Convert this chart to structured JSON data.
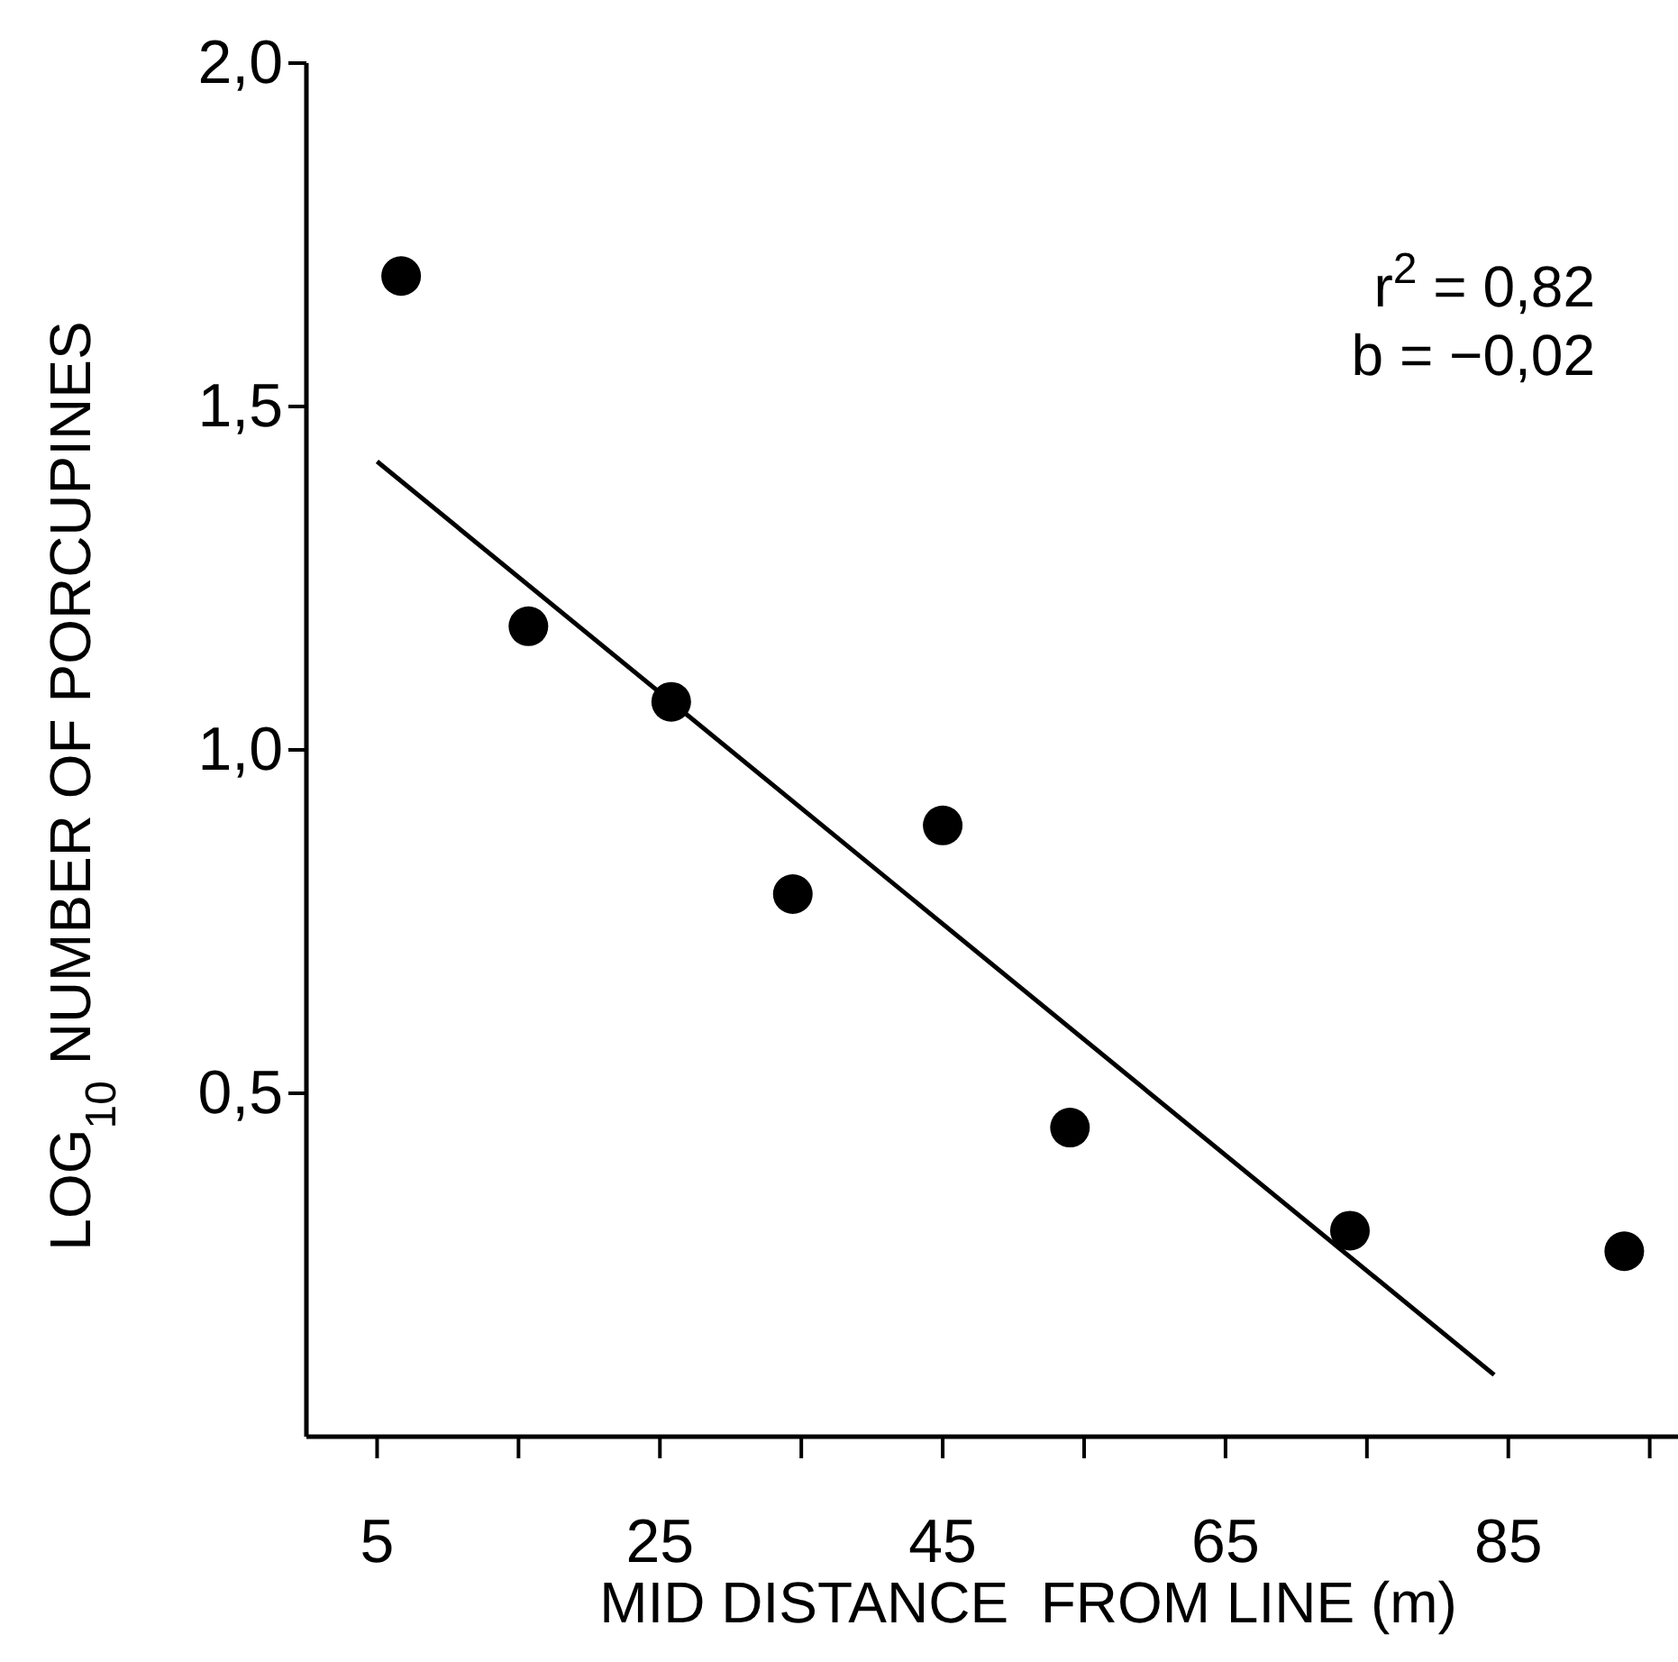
{
  "chart_data": {
    "type": "scatter",
    "xlabel": "MID DISTANCE  FROM LINE (m)",
    "ylabel": "LOG$_{10}$ NUMBER OF PORCUPINES",
    "annotations": [
      "r$^{2}$ = 0,82",
      "b = −0,02"
    ],
    "xlim": [
      0,
      97
    ],
    "xticks": [
      5,
      {
        "value": 15,
        "label": null
      },
      25,
      {
        "value": 35,
        "label": null
      },
      45,
      {
        "value": 55,
        "label": null
      },
      65,
      {
        "value": 75,
        "label": null
      },
      85,
      {
        "value": 95,
        "label": null
      }
    ],
    "ylim": [
      0,
      2.0
    ],
    "yticks": [
      {
        "value": 0.5,
        "label": "0,5"
      },
      {
        "value": 1.0,
        "label": "1,0"
      },
      {
        "value": 1.5,
        "label": "1,5"
      },
      {
        "value": 2.0,
        "label": "2,0"
      }
    ],
    "grid": false,
    "marker": "circle",
    "series": [
      {
        "color": "#000000",
        "x": [
          6.7,
          15.7,
          25.8,
          34.4,
          45.0,
          54.0,
          73.8,
          93.2
        ],
        "values": [
          1.69,
          1.18,
          1.07,
          0.79,
          0.89,
          0.45,
          0.3,
          0.27
        ]
      },
      {
        "type": "line",
        "color": "#000000",
        "line_style": "solid",
        "marker": "none",
        "x": [
          5,
          84
        ],
        "values": [
          1.42,
          0.09
        ]
      }
    ]
  }
}
